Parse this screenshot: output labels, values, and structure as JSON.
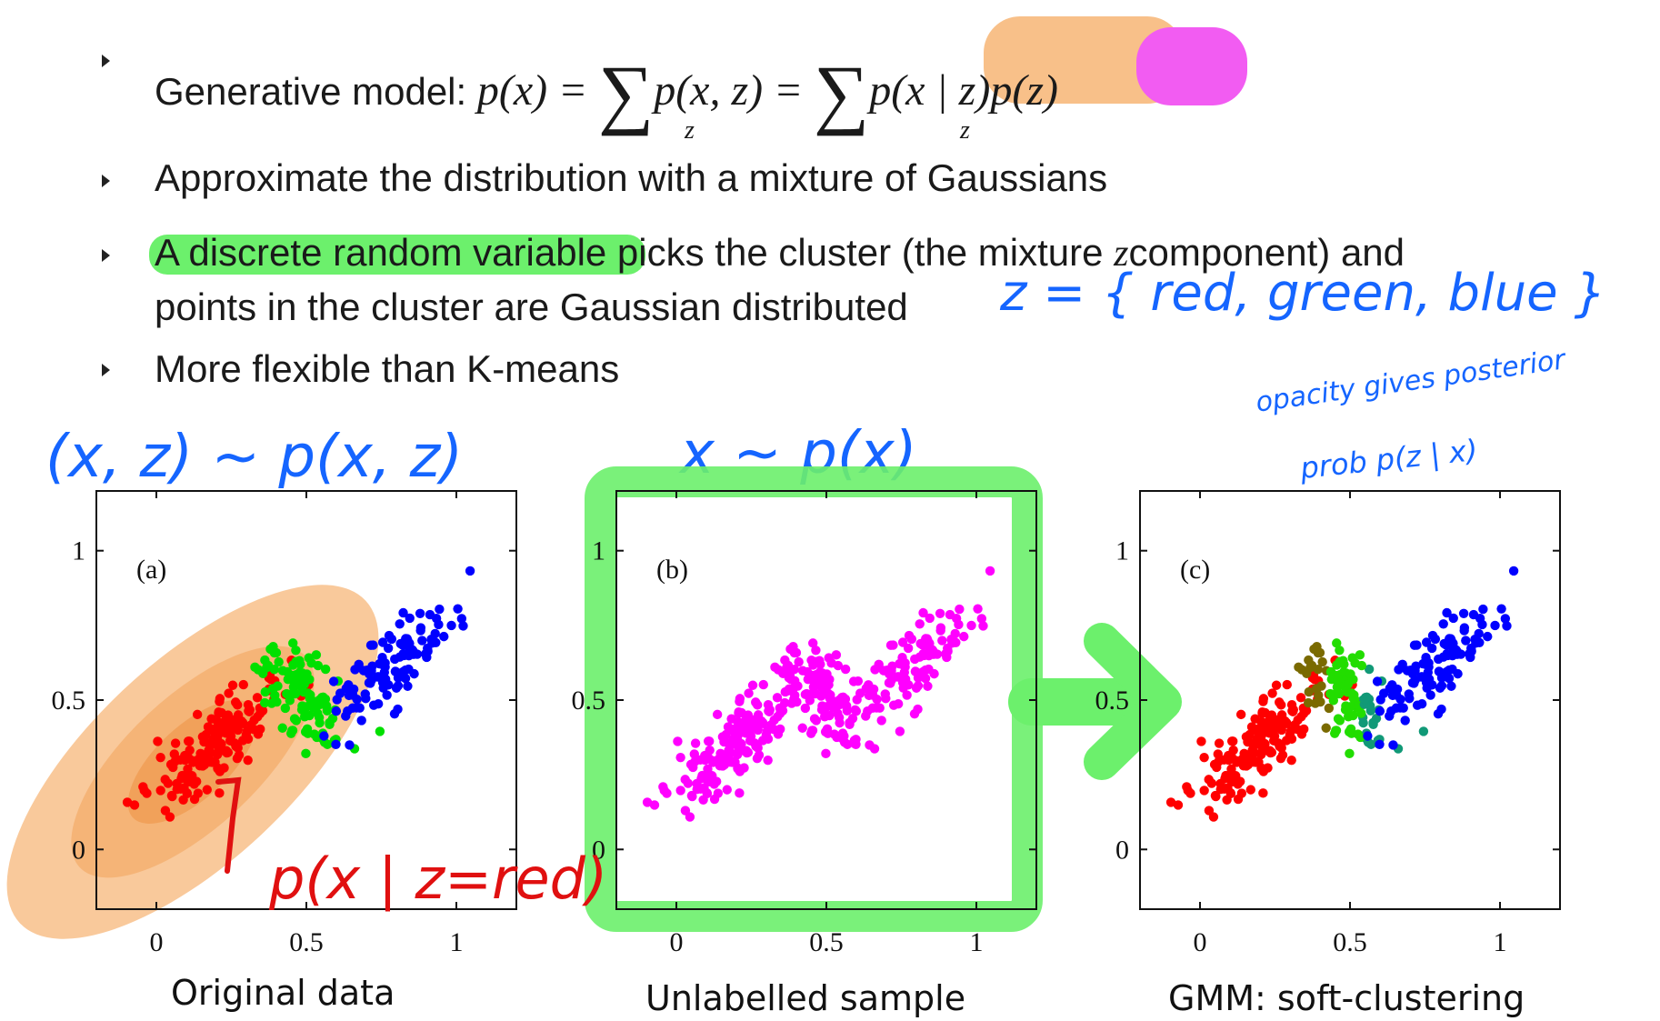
{
  "bullets": [
    {
      "prefix": "Generative model: "
    },
    {
      "text": "Approximate the distribution with a mixture of Gaussians"
    },
    {
      "highlight": "A discrete random variable",
      "rest": " picks the cluster (the mixture ",
      "z": "z",
      "rest2": "component) and",
      "line2": "points in the cluster are Gaussian distributed"
    },
    {
      "text": "More flexible than K-means"
    }
  ],
  "equation": {
    "lhs": "p(x)",
    "eq1": "=",
    "joint": "p(x, z)",
    "eq2": "=",
    "likelihood": "p(x | z)",
    "prior": "p(z)",
    "sum_index": "z"
  },
  "annotations": {
    "joint_sample": "(x, z) ~ p(x, z)",
    "marginal_sample": "x ~ p(x)",
    "z_values": "z = { red, green, blue }",
    "opacity_note_1": "opacity gives posterior",
    "opacity_note_2": "prob p(z | x)",
    "red_likelihood": "p(x | z=red)"
  },
  "captions": {
    "a": "Original data",
    "b": "Unlabelled sample",
    "c": "GMM: soft-clustering"
  },
  "chart_data": [
    {
      "type": "scatter",
      "panel_label": "(a)",
      "xlim": [
        -0.2,
        1.2
      ],
      "ylim": [
        -0.2,
        1.2
      ],
      "xticks": [
        "0",
        "0.5",
        "1"
      ],
      "yticks": [
        "0",
        "0.5",
        "1"
      ],
      "series": [
        {
          "color": "#ff0000",
          "center": [
            0.2,
            0.35
          ],
          "spread": [
            0.11,
            0.11
          ],
          "corr": 0.85,
          "count": 170
        },
        {
          "color": "#00e000",
          "center": [
            0.48,
            0.52
          ],
          "spread": [
            0.08,
            0.1
          ],
          "corr": -0.6,
          "count": 110
        },
        {
          "color": "#0000ff",
          "center": [
            0.8,
            0.62
          ],
          "spread": [
            0.1,
            0.1
          ],
          "corr": 0.8,
          "count": 110
        }
      ]
    },
    {
      "type": "scatter",
      "panel_label": "(b)",
      "xlim": [
        -0.2,
        1.2
      ],
      "ylim": [
        -0.2,
        1.2
      ],
      "xticks": [
        "0",
        "0.5",
        "1"
      ],
      "yticks": [
        "0",
        "0.5",
        "1"
      ],
      "series": [
        {
          "color": "#ff00ff",
          "center": [
            0.2,
            0.35
          ],
          "spread": [
            0.11,
            0.11
          ],
          "corr": 0.85,
          "count": 170
        },
        {
          "color": "#ff00ff",
          "center": [
            0.48,
            0.52
          ],
          "spread": [
            0.08,
            0.1
          ],
          "corr": -0.6,
          "count": 110
        },
        {
          "color": "#ff00ff",
          "center": [
            0.8,
            0.62
          ],
          "spread": [
            0.1,
            0.1
          ],
          "corr": 0.8,
          "count": 110
        }
      ]
    },
    {
      "type": "scatter",
      "panel_label": "(c)",
      "xlim": [
        -0.2,
        1.2
      ],
      "ylim": [
        -0.2,
        1.2
      ],
      "xticks": [
        "0",
        "0.5",
        "1"
      ],
      "yticks": [
        "0",
        "0.5",
        "1"
      ],
      "series": [
        {
          "color": "#ff0000",
          "center": [
            0.2,
            0.35
          ],
          "spread": [
            0.11,
            0.11
          ],
          "corr": 0.85,
          "count": 170
        },
        {
          "color": "#22dd00",
          "center": [
            0.48,
            0.52
          ],
          "spread": [
            0.08,
            0.1
          ],
          "corr": -0.6,
          "count": 110
        },
        {
          "color": "#0000ff",
          "center": [
            0.8,
            0.62
          ],
          "spread": [
            0.1,
            0.1
          ],
          "corr": 0.8,
          "count": 110
        }
      ]
    }
  ],
  "colors": {
    "text": "#1a1a1a",
    "hand_blue": "#1565ff",
    "hand_red": "#e01010",
    "hl_orange": "#f8c089",
    "hl_magenta": "#f25cf2",
    "hl_green": "#6cf06c"
  }
}
